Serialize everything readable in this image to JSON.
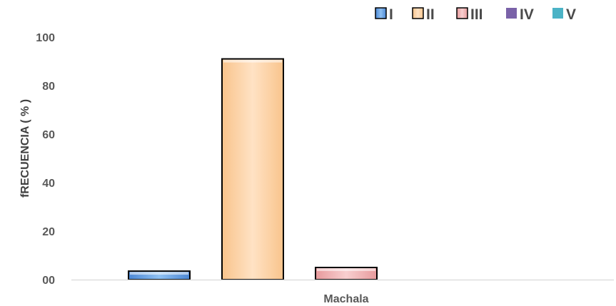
{
  "chart_data": {
    "type": "bar",
    "categories": [
      "Machala"
    ],
    "series": [
      {
        "name": "I",
        "values": [
          3.5
        ],
        "color": "#4a86d4",
        "light": "#8ec0f2"
      },
      {
        "name": "II",
        "values": [
          91
        ],
        "color": "#f9c48c",
        "light": "#ffe2c4"
      },
      {
        "name": "III",
        "values": [
          5
        ],
        "color": "#e79a9c",
        "light": "#f8cfd0"
      },
      {
        "name": "IV",
        "values": [
          0
        ],
        "color": "#7a62a8",
        "light": "#7a62a8"
      },
      {
        "name": "V",
        "values": [
          0
        ],
        "color": "#4bb3c6",
        "light": "#4bb3c6"
      }
    ],
    "title": "",
    "xlabel": "",
    "ylabel": "fRECUENCIA ( % )",
    "ylim": [
      0,
      100
    ],
    "yticks": [
      0,
      20,
      40,
      60,
      80,
      100
    ],
    "ytick_labels": [
      "00",
      "20",
      "40",
      "60",
      "80",
      "100"
    ],
    "grid": false,
    "legend_position": "top-right",
    "bar_outline_color": "#000000",
    "axis_color": "#d9d9d9"
  }
}
